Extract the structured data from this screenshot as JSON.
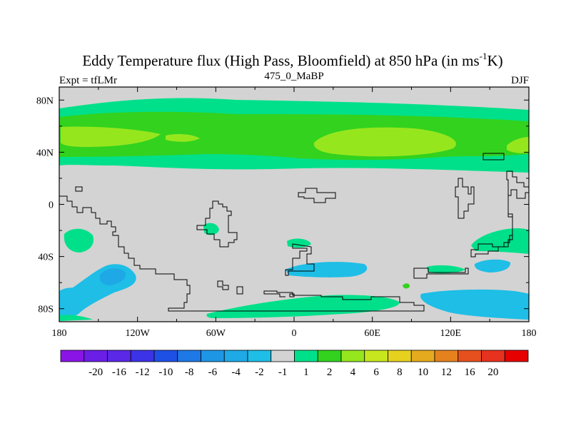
{
  "chart_data": {
    "type": "heatmap",
    "title_main": "Eddy Temperature flux (High Pass, Bloomfield) at 850 hPa (in ms",
    "title_exp": "-1",
    "title_unit": "K)",
    "subtitle_left": "Expt = tfLMr",
    "subtitle_center": "475_0_MaBP",
    "subtitle_right": "DJF",
    "lon_range": [
      -180,
      180
    ],
    "lat_range": [
      -90,
      90
    ],
    "x_ticks": [
      {
        "lon": -180,
        "label": "180"
      },
      {
        "lon": -120,
        "label": "120W"
      },
      {
        "lon": -60,
        "label": "60W"
      },
      {
        "lon": 0,
        "label": "0"
      },
      {
        "lon": 60,
        "label": "60E"
      },
      {
        "lon": 120,
        "label": "120E"
      },
      {
        "lon": 180,
        "label": "180"
      }
    ],
    "y_ticks": [
      {
        "lat": 80,
        "label": "80N"
      },
      {
        "lat": 40,
        "label": "40N"
      },
      {
        "lat": 0,
        "label": "0"
      },
      {
        "lat": -40,
        "label": "40S"
      },
      {
        "lat": -80,
        "label": "80S"
      }
    ],
    "colorbar": {
      "colors": [
        "#8a14e6",
        "#6a1ee6",
        "#5a28e6",
        "#3c32e6",
        "#1e50e6",
        "#1e78e6",
        "#1e96e6",
        "#1eaae6",
        "#1ebee6",
        "#d3d3d3",
        "#00e08a",
        "#32d21e",
        "#96e61e",
        "#c8e61e",
        "#e6d21e",
        "#e6aa1e",
        "#e6821e",
        "#e6501e",
        "#e6321e",
        "#e60000"
      ],
      "labels": [
        "-20",
        "-16",
        "-12",
        "-10",
        "-8",
        "-6",
        "-4",
        "-2",
        "-1",
        "1",
        "2",
        "4",
        "6",
        "8",
        "10",
        "12",
        "16",
        "20"
      ]
    },
    "bands": [
      {
        "level": "1 to 2",
        "lon_range": [
          -180,
          180
        ],
        "lat_range": [
          22,
          83
        ]
      },
      {
        "level": "2 to 4",
        "lon_range": [
          -180,
          180
        ],
        "lat_range": [
          28,
          76
        ]
      },
      {
        "level": "4 to 6",
        "lon_range": [
          -178,
          -108
        ],
        "lat_range": [
          40,
          60
        ]
      },
      {
        "level": "4 to 6",
        "lon_range": [
          30,
          122
        ],
        "lat_range": [
          36,
          57
        ]
      },
      {
        "level": "4 to 6",
        "lon_range": [
          163,
          180
        ],
        "lat_range": [
          38,
          52
        ]
      },
      {
        "level": "-4 to -2",
        "lon_range": [
          -176,
          -138
        ],
        "lat_range": [
          -90,
          -42
        ]
      },
      {
        "level": "-4 to -2",
        "lon_range": [
          95,
          180
        ],
        "lat_range": [
          -90,
          -62
        ]
      },
      {
        "level": "-4 to -2",
        "lon_range": [
          10,
          60
        ],
        "lat_range": [
          -62,
          -44
        ]
      },
      {
        "level": "-4 to -2",
        "lon_range": [
          140,
          172
        ],
        "lat_range": [
          -54,
          -44
        ]
      },
      {
        "level": "1 to 2",
        "lon_range": [
          -100,
          80
        ],
        "lat_range": [
          -90,
          -68
        ]
      },
      {
        "level": "1 to 2",
        "lon_range": [
          -178,
          -146
        ],
        "lat_range": [
          -40,
          -18
        ]
      },
      {
        "level": "1 to 2",
        "lon_range": [
          -70,
          -56
        ],
        "lat_range": [
          -24,
          -16
        ]
      },
      {
        "level": "1 to 2",
        "lon_range": [
          -8,
          14
        ],
        "lat_range": [
          -32,
          -26
        ]
      },
      {
        "level": "1 to 2",
        "lon_range": [
          133,
          180
        ],
        "lat_range": [
          -36,
          -18
        ]
      },
      {
        "level": "1 to 2",
        "lon_range": [
          100,
          145
        ],
        "lat_range": [
          -52,
          -48
        ]
      }
    ]
  }
}
